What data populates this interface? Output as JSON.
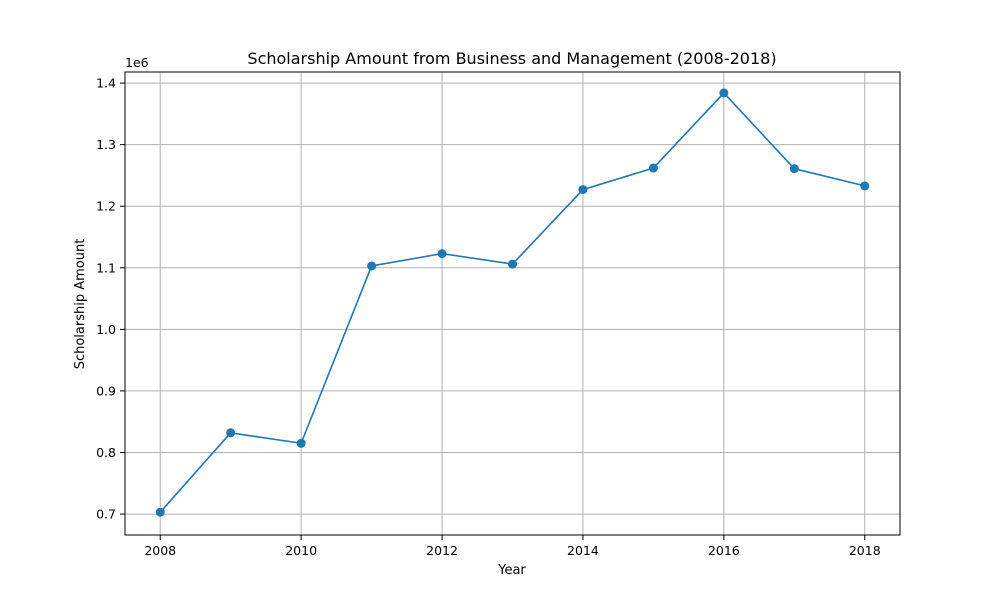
{
  "chart_data": {
    "type": "line",
    "title": "Scholarship Amount from Business and Management (2008-2018)",
    "xlabel": "Year",
    "ylabel": "Scholarship Amount",
    "y_offset_label": "1e6",
    "x": [
      2008,
      2009,
      2010,
      2011,
      2012,
      2013,
      2014,
      2015,
      2016,
      2017,
      2018
    ],
    "series": [
      {
        "values": [
          703000,
          832000,
          815000,
          1103000,
          1123000,
          1106000,
          1227000,
          1262000,
          1384000,
          1261000,
          1233000
        ]
      }
    ],
    "xlim": [
      2007.5,
      2018.5
    ],
    "ylim": [
      666000.0,
      1418000.0
    ],
    "x_ticks": [
      {
        "value": 2008,
        "label": "2008"
      },
      {
        "value": 2010,
        "label": "2010"
      },
      {
        "value": 2012,
        "label": "2012"
      },
      {
        "value": 2014,
        "label": "2014"
      },
      {
        "value": 2016,
        "label": "2016"
      },
      {
        "value": 2018,
        "label": "2018"
      }
    ],
    "y_ticks": [
      {
        "value": 700000,
        "label": "0.7"
      },
      {
        "value": 800000,
        "label": "0.8"
      },
      {
        "value": 900000,
        "label": "0.9"
      },
      {
        "value": 1000000,
        "label": "1.0"
      },
      {
        "value": 1100000,
        "label": "1.1"
      },
      {
        "value": 1200000,
        "label": "1.2"
      },
      {
        "value": 1300000,
        "label": "1.3"
      },
      {
        "value": 1400000,
        "label": "1.4"
      }
    ],
    "grid": true,
    "legend": "none",
    "colors": {
      "line": "#1f77b4",
      "grid": "#b0b0b0",
      "axis": "#000000"
    }
  }
}
